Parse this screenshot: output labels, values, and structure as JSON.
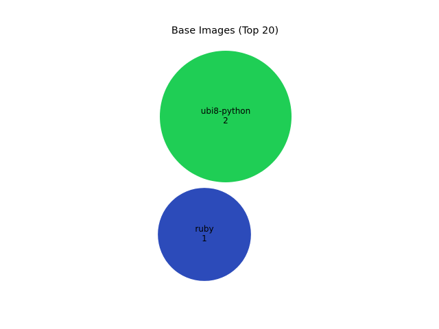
{
  "chart_data": {
    "type": "bubble",
    "title": "Base Images (Top 20)",
    "xlabel": "",
    "ylabel": "",
    "axes": "hidden",
    "grid": false,
    "legend": "none",
    "series": [
      {
        "label": "ubi8-python",
        "value": 2,
        "color": "#1fce55"
      },
      {
        "label": "ruby",
        "value": 1,
        "color": "#2c4bba"
      }
    ]
  }
}
